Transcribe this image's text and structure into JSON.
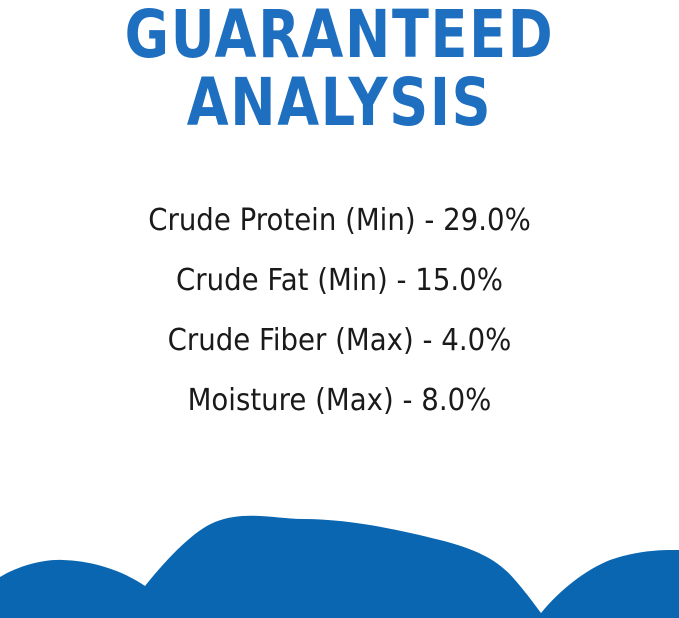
{
  "title": {
    "line1": "GUARANTEED",
    "line2": "ANALYSIS"
  },
  "analysis": [
    "Crude Protein (Min) - 29.0%",
    "Crude Fat (Min) - 15.0%",
    "Crude Fiber (Max) - 4.0%",
    "Moisture (Max) - 8.0%"
  ],
  "colors": {
    "title": "#1f6fc1",
    "shape": "#0a66b0",
    "text": "#1a1a1a"
  }
}
